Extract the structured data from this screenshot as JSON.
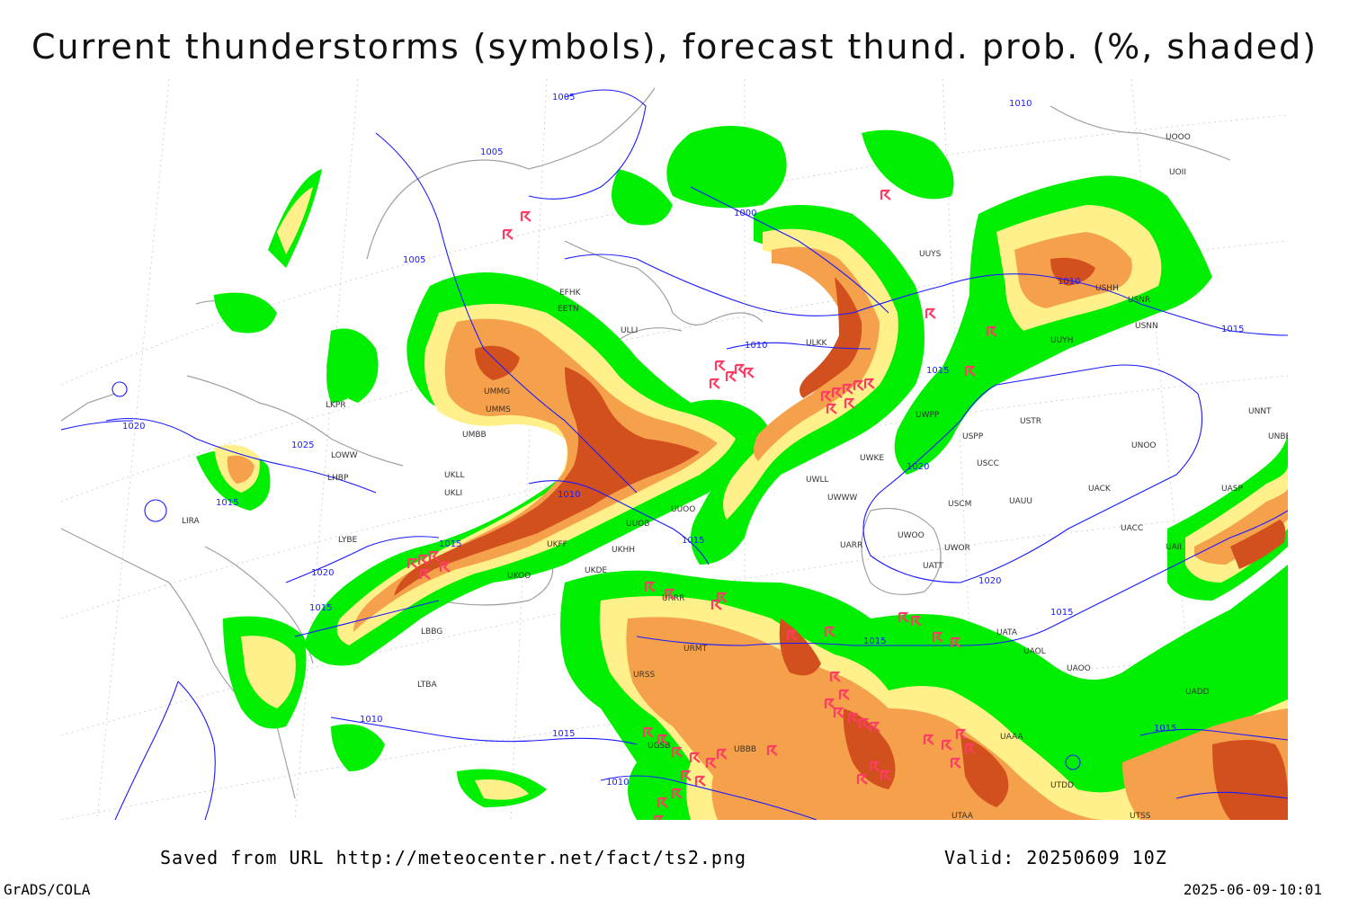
{
  "title": "Current thunderstorms (symbols), forecast thund. prob. (%, shaded)",
  "footer": {
    "saved_from": "Saved from URL http://meteocenter.net/fact/ts2.png",
    "valid": "Valid: 20250609 10Z",
    "software": "GrADS/COLA",
    "timestamp": "2025-06-09-10:01"
  },
  "colors": {
    "prob_low": "#00ee00",
    "prob_mid": "#fff08c",
    "prob_high": "#f5a04b",
    "prob_very_high": "#d2501e",
    "isobar": "#1a1aff",
    "coastline": "#a0a0a0",
    "storm_symbol": "#ff3c64"
  },
  "isobars": [
    "1000",
    "1005",
    "1005",
    "1005",
    "1010",
    "1010",
    "1010",
    "1010",
    "1010",
    "1010",
    "1015",
    "1015",
    "1015",
    "1015",
    "1015",
    "1015",
    "1015",
    "1015",
    "1015",
    "1015",
    "1020",
    "1020",
    "1020",
    "1020",
    "1025"
  ],
  "stations": [
    "EFHK",
    "EETN",
    "ULLI",
    "ULKK",
    "UUYS",
    "UUYH",
    "USNR",
    "USNN",
    "USHH",
    "UNNT",
    "UNBB",
    "UOOO",
    "UOII",
    "UMMS",
    "UMMG",
    "UMBB",
    "LKPR",
    "LOWW",
    "LHBP",
    "LIRA",
    "LYBE",
    "LBBG",
    "LTBA",
    "UKLL",
    "UKLI",
    "UUOB",
    "UUOO",
    "UKHH",
    "UKOO",
    "UKDE",
    "UKFF",
    "URSS",
    "URMT",
    "URRR",
    "UGSB",
    "UBBB",
    "UTAA",
    "UATT",
    "UACC",
    "UAII",
    "UADD",
    "UAOL",
    "UAOO",
    "UATA",
    "UARR",
    "UWWW",
    "UWKE",
    "UWLL",
    "UWOO",
    "UWOR",
    "UWPP",
    "USPP",
    "USTR",
    "USCC",
    "USCM",
    "UAUU",
    "UACK",
    "UASP",
    "UNOO",
    "UAAA",
    "UTDD",
    "UTSS"
  ]
}
